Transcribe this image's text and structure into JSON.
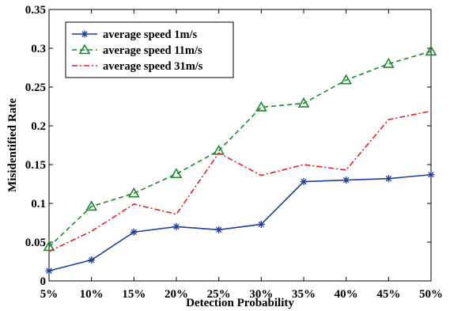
{
  "chart_data": {
    "type": "line",
    "xlabel": "Detection Probability",
    "ylabel": "Misidentified Rate",
    "categories": [
      "5%",
      "10%",
      "15%",
      "20%",
      "25%",
      "30%",
      "35%",
      "40%",
      "45%",
      "50%"
    ],
    "ylim": [
      0,
      0.35
    ],
    "yticks": [
      "0",
      "0.05",
      "0.1",
      "0.15",
      "0.2",
      "0.25",
      "0.3",
      "0.35"
    ],
    "grid": false,
    "legend_position": "top-left",
    "series": [
      {
        "name": "average speed 1m/s",
        "color": "#1f3f99",
        "line_style": "solid",
        "marker": "asterisk",
        "values": [
          0.013,
          0.027,
          0.063,
          0.07,
          0.066,
          0.073,
          0.128,
          0.13,
          0.132,
          0.137
        ]
      },
      {
        "name": "average speed 11m/s",
        "color": "#1a8a2a",
        "line_style": "dashed",
        "marker": "triangle",
        "values": [
          0.044,
          0.096,
          0.113,
          0.138,
          0.168,
          0.224,
          0.229,
          0.259,
          0.28,
          0.296
        ]
      },
      {
        "name": "average speed 31m/s",
        "color": "#e0202a",
        "line_style": "dashdot",
        "marker": "none",
        "values": [
          0.038,
          0.064,
          0.099,
          0.086,
          0.165,
          0.136,
          0.15,
          0.143,
          0.208,
          0.219
        ]
      }
    ]
  }
}
